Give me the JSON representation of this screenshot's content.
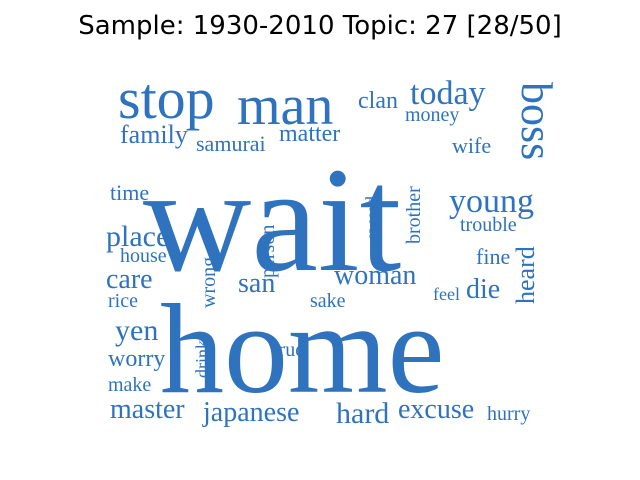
{
  "title": "Sample: 1930-2010 Topic: 27 [28/50]",
  "word_color": "#2f73bf",
  "words": [
    "wait",
    "home",
    "stop",
    "man",
    "boss",
    "today",
    "clan",
    "money",
    "family",
    "samurai",
    "matter",
    "wife",
    "time",
    "young",
    "trouble",
    "brother",
    "sword",
    "person",
    "place",
    "house",
    "wrong",
    "care",
    "san",
    "woman",
    "fine",
    "heard",
    "rice",
    "sake",
    "feel",
    "die",
    "yen",
    "drink",
    "true",
    "worry",
    "make",
    "master",
    "japanese",
    "hard",
    "excuse",
    "hurry"
  ]
}
